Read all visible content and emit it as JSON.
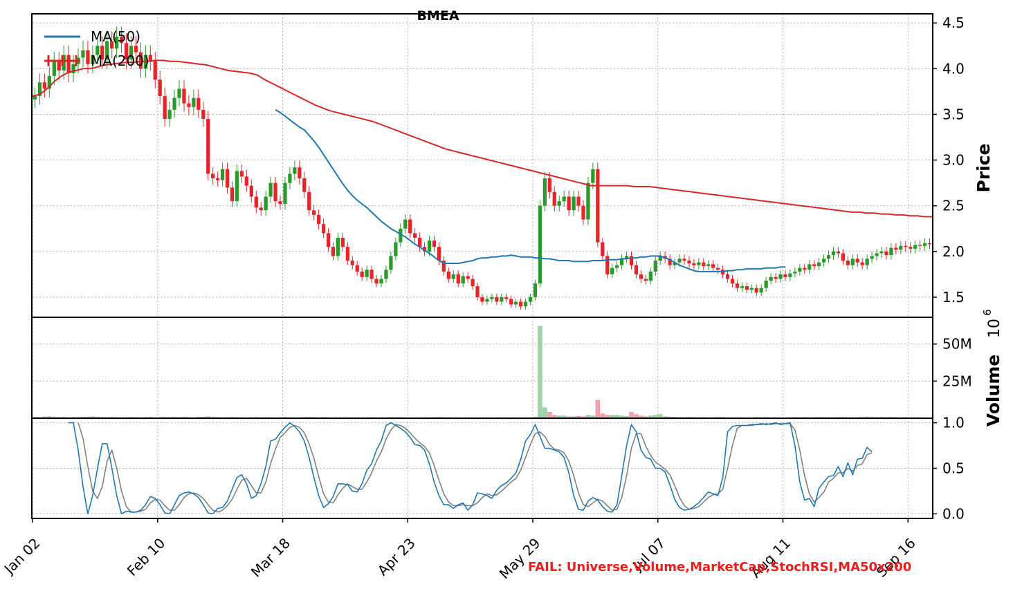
{
  "title": "BMEA",
  "fail_text": "FAIL: Universe,Volume,MarketCap,StochRSI,MA50x200",
  "legend": [
    {
      "label": "MA(50)",
      "color": "#1f77b4"
    },
    {
      "label": "MA(200)",
      "color": "#d62728"
    }
  ],
  "axes": {
    "price_label": "Price",
    "volume_label": "Volume",
    "volume_exponent": "10",
    "volume_exponent_power": "6"
  },
  "chart_data": {
    "type": "candlestick",
    "x_ticks": [
      "Jan 02",
      "Feb 10",
      "Mar 18",
      "Apr 23",
      "May 29",
      "Jul 07",
      "Aug 11",
      "Sep 16"
    ],
    "x_tick_index": [
      0,
      26,
      52,
      78,
      104,
      130,
      156,
      182
    ],
    "colors": {
      "up": "#2a9a2a",
      "down": "#e8242a",
      "ma50": "#1f77b4",
      "ma200": "#d62728",
      "vol_up": "#9fd4a9",
      "vol_down": "#f4a3ad",
      "k": "#1f77b4",
      "d": "#808080"
    },
    "price": {
      "ylim": [
        1.28,
        4.6
      ],
      "ticks": [
        1.5,
        2.0,
        2.5,
        3.0,
        3.5,
        4.0,
        4.5
      ],
      "tick_labels": [
        "1.5",
        "2.0",
        "2.5",
        "3.0",
        "3.5",
        "4.0",
        "4.5"
      ],
      "close": [
        3.7,
        3.85,
        3.78,
        3.92,
        4.08,
        3.98,
        4.15,
        3.95,
        4.05,
        4.12,
        4.2,
        4.05,
        4.15,
        4.25,
        4.1,
        4.3,
        4.22,
        4.35,
        4.28,
        4.1,
        4.25,
        4.18,
        4.0,
        4.15,
        4.08,
        3.88,
        3.7,
        3.45,
        3.55,
        3.68,
        3.78,
        3.62,
        3.58,
        3.68,
        3.55,
        3.45,
        2.85,
        2.8,
        2.78,
        2.9,
        2.7,
        2.55,
        2.88,
        2.82,
        2.72,
        2.6,
        2.48,
        2.45,
        2.6,
        2.75,
        2.55,
        2.52,
        2.75,
        2.85,
        2.92,
        2.8,
        2.65,
        2.45,
        2.4,
        2.3,
        2.2,
        2.05,
        1.95,
        2.15,
        2.05,
        1.9,
        1.85,
        1.78,
        1.72,
        1.8,
        1.7,
        1.65,
        1.7,
        1.8,
        1.95,
        2.1,
        2.25,
        2.35,
        2.2,
        2.15,
        2.05,
        2.0,
        2.12,
        2.05,
        1.9,
        1.78,
        1.7,
        1.75,
        1.65,
        1.73,
        1.7,
        1.62,
        1.5,
        1.45,
        1.48,
        1.5,
        1.45,
        1.5,
        1.48,
        1.42,
        1.45,
        1.4,
        1.45,
        1.5,
        1.65,
        2.5,
        2.8,
        2.65,
        2.5,
        2.55,
        2.6,
        2.45,
        2.6,
        2.5,
        2.35,
        2.75,
        2.9,
        2.1,
        1.95,
        1.75,
        1.82,
        1.85,
        1.92,
        1.95,
        1.85,
        1.75,
        1.7,
        1.68,
        1.78,
        1.9,
        1.95,
        1.92,
        1.85,
        1.88,
        1.92,
        1.9,
        1.87,
        1.85,
        1.88,
        1.84,
        1.86,
        1.82,
        1.8,
        1.75,
        1.7,
        1.65,
        1.6,
        1.62,
        1.58,
        1.6,
        1.55,
        1.6,
        1.68,
        1.72,
        1.7,
        1.75,
        1.72,
        1.76,
        1.78,
        1.82,
        1.8,
        1.86,
        1.84,
        1.88,
        1.92,
        1.96,
        2.0,
        1.98,
        1.9,
        1.85,
        1.92,
        1.88,
        1.85,
        1.92,
        1.95,
        1.98,
        2.0,
        1.96,
        2.04,
        2.02,
        2.06,
        2.05,
        2.03,
        2.07,
        2.06,
        2.09,
        2.08
      ],
      "ma50": [
        null,
        null,
        null,
        null,
        null,
        null,
        null,
        null,
        null,
        null,
        null,
        null,
        null,
        null,
        null,
        null,
        null,
        null,
        null,
        null,
        null,
        null,
        null,
        null,
        null,
        null,
        null,
        null,
        null,
        null,
        null,
        null,
        null,
        null,
        null,
        null,
        null,
        null,
        null,
        null,
        null,
        null,
        null,
        null,
        null,
        null,
        null,
        null,
        null,
        null,
        3.55,
        3.52,
        3.48,
        3.44,
        3.4,
        3.36,
        3.33,
        3.27,
        3.21,
        3.14,
        3.06,
        2.98,
        2.9,
        2.82,
        2.74,
        2.67,
        2.61,
        2.56,
        2.52,
        2.48,
        2.43,
        2.38,
        2.33,
        2.29,
        2.25,
        2.22,
        2.19,
        2.16,
        2.12,
        2.08,
        2.05,
        2.01,
        1.98,
        1.94,
        1.9,
        1.87,
        1.87,
        1.87,
        1.87,
        1.88,
        1.89,
        1.9,
        1.92,
        1.93,
        1.93,
        1.94,
        1.94,
        1.95,
        1.95,
        1.96,
        1.95,
        1.94,
        1.94,
        1.94,
        1.93,
        1.93,
        1.92,
        1.92,
        1.91,
        1.9,
        1.9,
        1.9,
        1.89,
        1.89,
        1.89,
        1.89,
        1.9,
        1.9,
        1.9,
        1.91,
        1.91,
        1.91,
        1.92,
        1.92,
        1.93,
        1.93,
        1.94,
        1.94,
        1.95,
        1.95,
        1.95,
        1.93,
        1.91,
        1.88,
        1.85,
        1.83,
        1.81,
        1.79,
        1.78,
        1.78,
        1.78,
        1.78,
        1.78,
        1.78,
        1.79,
        1.79,
        1.8,
        1.8,
        1.81,
        1.81,
        1.81,
        1.81,
        1.82,
        1.82,
        1.82,
        1.83,
        1.83
      ],
      "ma200": [
        3.7,
        3.72,
        3.78,
        3.86,
        3.92,
        3.96,
        3.98,
        4.0,
        4.0,
        4.02,
        4.04,
        4.05,
        4.06,
        4.07,
        4.07,
        4.08,
        4.08,
        4.09,
        4.09,
        4.08,
        4.08,
        4.07,
        4.06,
        4.05,
        4.04,
        4.02,
        4.0,
        3.98,
        3.97,
        3.96,
        3.95,
        3.93,
        3.88,
        3.84,
        3.8,
        3.76,
        3.72,
        3.68,
        3.64,
        3.6,
        3.57,
        3.54,
        3.52,
        3.5,
        3.48,
        3.46,
        3.44,
        3.42,
        3.39,
        3.36,
        3.33,
        3.3,
        3.27,
        3.24,
        3.21,
        3.18,
        3.15,
        3.12,
        3.1,
        3.08,
        3.06,
        3.04,
        3.02,
        3.0,
        2.98,
        2.96,
        2.94,
        2.92,
        2.9,
        2.88,
        2.86,
        2.84,
        2.82,
        2.8,
        2.78,
        2.76,
        2.74,
        2.72,
        2.72,
        2.72,
        2.72,
        2.72,
        2.72,
        2.71,
        2.71,
        2.71,
        2.7,
        2.69,
        2.68,
        2.67,
        2.66,
        2.65,
        2.64,
        2.63,
        2.62,
        2.61,
        2.6,
        2.59,
        2.58,
        2.57,
        2.56,
        2.55,
        2.54,
        2.53,
        2.52,
        2.51,
        2.5,
        2.49,
        2.48,
        2.47,
        2.46,
        2.45,
        2.44,
        2.43,
        2.43,
        2.42,
        2.42,
        2.41,
        2.41,
        2.4,
        2.4,
        2.39,
        2.39,
        2.38,
        2.38
      ],
      "ma200_x": [
        0,
        3,
        6,
        9,
        12,
        15,
        18,
        21,
        24,
        27,
        30,
        33,
        36,
        39,
        42,
        45,
        48,
        51,
        54,
        57,
        60,
        63,
        66,
        69,
        72,
        75,
        78,
        81,
        84,
        87,
        90,
        93,
        96,
        99,
        102,
        105,
        108,
        111,
        114,
        117,
        120,
        123,
        126,
        129,
        132,
        135,
        138,
        141,
        144,
        147,
        150,
        153,
        156,
        159,
        162,
        165,
        168,
        171,
        174,
        177,
        180,
        183,
        186,
        189,
        192,
        195,
        198,
        201,
        204,
        207,
        210,
        213,
        216,
        219,
        222,
        225,
        228,
        231,
        234,
        237,
        240,
        243,
        246,
        249,
        252,
        255,
        258,
        261,
        264,
        267,
        270,
        273,
        276,
        279,
        282,
        285,
        288,
        291,
        294,
        297,
        300,
        303,
        306,
        309,
        312,
        315,
        318,
        321,
        324,
        327,
        330,
        333,
        336,
        339,
        342,
        345,
        348,
        351,
        354,
        357,
        360,
        363,
        366,
        369,
        372
      ]
    },
    "volume": {
      "ylim": [
        0,
        68
      ],
      "ticks": [
        25,
        50
      ],
      "tick_labels": [
        "25M",
        "50M"
      ],
      "values": [
        0.6,
        0.5,
        0.9,
        1.1,
        0.7,
        0.5,
        0.6,
        0.4,
        0.5,
        0.6,
        0.8,
        0.9,
        1.0,
        0.7,
        0.6,
        0.5,
        0.6,
        0.5,
        0.4,
        0.5,
        0.6,
        0.5,
        0.4,
        0.5,
        0.6,
        0.4,
        0.5,
        0.6,
        0.5,
        0.6,
        0.5,
        0.7,
        0.5,
        0.4,
        0.6,
        0.8,
        1.0,
        0.6,
        0.5,
        0.4,
        0.5,
        0.6,
        0.5,
        0.4,
        0.3,
        0.4,
        0.5,
        0.4,
        0.5,
        0.4,
        0.3,
        0.4,
        0.5,
        0.4,
        0.3,
        0.4,
        0.5,
        0.6,
        0.5,
        0.4,
        0.5,
        0.4,
        0.3,
        0.4,
        0.3,
        0.4,
        0.3,
        0.4,
        0.3,
        0.4,
        0.5,
        0.4,
        0.3,
        0.4,
        0.5,
        0.4,
        0.5,
        0.4,
        0.3,
        0.4,
        0.3,
        0.5,
        0.4,
        0.5,
        0.6,
        0.5,
        0.4,
        0.3,
        0.4,
        0.3,
        0.2,
        0.3,
        0.2,
        0.3,
        0.3,
        0.2,
        0.3,
        0.2,
        0.3,
        0.2,
        0.3,
        0.2,
        0.3,
        0.4,
        0.6,
        62.0,
        7.0,
        4.0,
        2.0,
        1.5,
        1.5,
        1.0,
        1.0,
        1.2,
        1.0,
        2.0,
        1.5,
        12.0,
        3.0,
        2.0,
        2.0,
        2.0,
        1.5,
        1.2,
        4.0,
        2.5,
        1.5,
        1.0,
        1.5,
        2.0,
        2.5,
        1.0,
        0.8,
        0.7,
        0.6,
        0.5,
        0.6,
        0.5,
        0.4,
        0.5,
        0.4,
        0.5,
        0.6,
        0.5,
        0.4,
        0.3,
        0.4,
        0.3,
        0.4,
        0.3,
        0.5,
        0.4,
        0.5,
        0.4,
        0.3,
        0.4,
        0.3,
        0.4,
        0.5,
        0.4,
        0.5,
        0.4,
        0.5,
        0.6,
        0.5,
        0.5,
        0.4,
        0.5,
        0.6,
        0.5,
        0.4,
        0.5,
        0.6,
        0.7,
        0.6,
        0.5,
        0.6,
        0.5,
        0.6,
        0.5,
        0.4,
        0.5,
        0.4
      ]
    },
    "stochrsi": {
      "ylim": [
        -0.05,
        1.05
      ],
      "ticks": [
        0.0,
        0.5,
        1.0
      ],
      "tick_labels": [
        "0.0",
        "0.5",
        "1.0"
      ],
      "k": [
        null,
        null,
        null,
        null,
        null,
        null,
        null,
        1.0,
        1.0,
        0.7,
        0.3,
        0.0,
        0.2,
        0.5,
        0.77,
        0.77,
        0.5,
        0.2,
        0.0,
        0.03,
        0.02,
        0.02,
        0.04,
        0.1,
        0.19,
        0.17,
        0.1,
        0.01,
        0.0,
        0.1,
        0.2,
        0.23,
        0.24,
        0.22,
        0.18,
        0.1,
        0.01,
        0.0,
        0.06,
        0.07,
        0.14,
        0.27,
        0.4,
        0.43,
        0.33,
        0.17,
        0.2,
        0.33,
        0.52,
        0.8,
        0.82,
        0.89,
        0.95,
        1.0,
        0.96,
        0.9,
        0.8,
        0.62,
        0.4,
        0.2,
        0.07,
        0.11,
        0.19,
        0.33,
        0.33,
        0.32,
        0.25,
        0.24,
        0.33,
        0.48,
        0.55,
        0.7,
        0.8,
        0.97,
        1.0,
        0.97,
        0.94,
        0.9,
        0.84,
        0.76,
        0.75,
        0.7,
        0.55,
        0.35,
        0.2,
        0.1,
        0.1,
        0.06,
        0.1,
        0.12,
        0.04,
        0.1,
        0.23,
        0.22,
        0.2,
        0.17,
        0.26,
        0.31,
        0.34,
        0.39,
        0.45,
        0.6,
        0.8,
        0.87,
        0.98,
        0.85,
        0.72,
        0.72,
        0.7,
        0.68,
        0.62,
        0.45,
        0.2,
        0.05,
        0.04,
        0.14,
        0.18,
        0.15,
        0.08,
        0.03,
        0.02,
        0.1,
        0.42,
        0.75,
        0.98,
        0.9,
        0.7,
        0.62,
        0.6,
        0.5,
        0.5,
        0.46,
        0.32,
        0.16,
        0.07,
        0.04,
        0.05,
        0.08,
        0.12,
        0.18,
        0.24,
        0.22,
        0.2,
        0.4,
        0.9,
        0.96,
        0.97,
        0.97,
        0.97,
        0.98,
        0.98,
        0.99,
        0.98,
        0.99,
        1.0,
        0.98,
        0.99,
        1.0,
        0.75,
        0.35,
        0.15,
        0.17,
        0.08,
        0.28,
        0.35,
        0.41,
        0.42,
        0.52,
        0.41,
        0.56,
        0.43,
        0.6,
        0.61,
        0.73,
        0.68
      ]
    },
    "stochrsi_d": [
      null,
      null,
      null,
      null,
      null,
      null,
      null,
      null,
      null,
      1.0,
      0.83,
      0.52,
      0.25,
      0.17,
      0.3,
      0.58,
      0.7,
      0.5,
      0.25,
      0.08,
      0.02,
      0.02,
      0.03,
      0.05,
      0.12,
      0.16,
      0.15,
      0.09,
      0.04,
      0.04,
      0.1,
      0.18,
      0.22,
      0.23,
      0.21,
      0.17,
      0.1,
      0.04,
      0.02,
      0.04,
      0.09,
      0.16,
      0.27,
      0.37,
      0.39,
      0.31,
      0.23,
      0.23,
      0.35,
      0.55,
      0.71,
      0.84,
      0.89,
      0.95,
      0.97,
      0.95,
      0.89,
      0.77,
      0.61,
      0.41,
      0.22,
      0.13,
      0.12,
      0.21,
      0.28,
      0.33,
      0.3,
      0.27,
      0.27,
      0.35,
      0.45,
      0.58,
      0.68,
      0.82,
      0.92,
      0.98,
      0.97,
      0.94,
      0.89,
      0.83,
      0.78,
      0.74,
      0.67,
      0.53,
      0.37,
      0.22,
      0.13,
      0.09,
      0.09,
      0.1,
      0.09,
      0.09,
      0.12,
      0.18,
      0.22,
      0.2,
      0.21,
      0.25,
      0.3,
      0.35,
      0.39,
      0.48,
      0.62,
      0.76,
      0.88,
      0.9,
      0.85,
      0.76,
      0.71,
      0.7,
      0.67,
      0.58,
      0.42,
      0.23,
      0.1,
      0.08,
      0.12,
      0.16,
      0.14,
      0.09,
      0.04,
      0.05,
      0.18,
      0.42,
      0.72,
      0.88,
      0.88,
      0.74,
      0.64,
      0.57,
      0.53,
      0.49,
      0.43,
      0.31,
      0.18,
      0.09,
      0.05,
      0.06,
      0.08,
      0.13,
      0.18,
      0.21,
      0.22,
      0.27,
      0.5,
      0.75,
      0.94,
      0.97,
      0.97,
      0.97,
      0.98,
      0.98,
      0.99,
      0.98,
      0.99,
      0.99,
      0.99,
      0.99,
      0.92,
      0.7,
      0.42,
      0.22,
      0.13,
      0.18,
      0.24,
      0.35,
      0.39,
      0.45,
      0.45,
      0.5,
      0.47,
      0.53,
      0.55,
      0.65,
      0.67
    ]
  }
}
